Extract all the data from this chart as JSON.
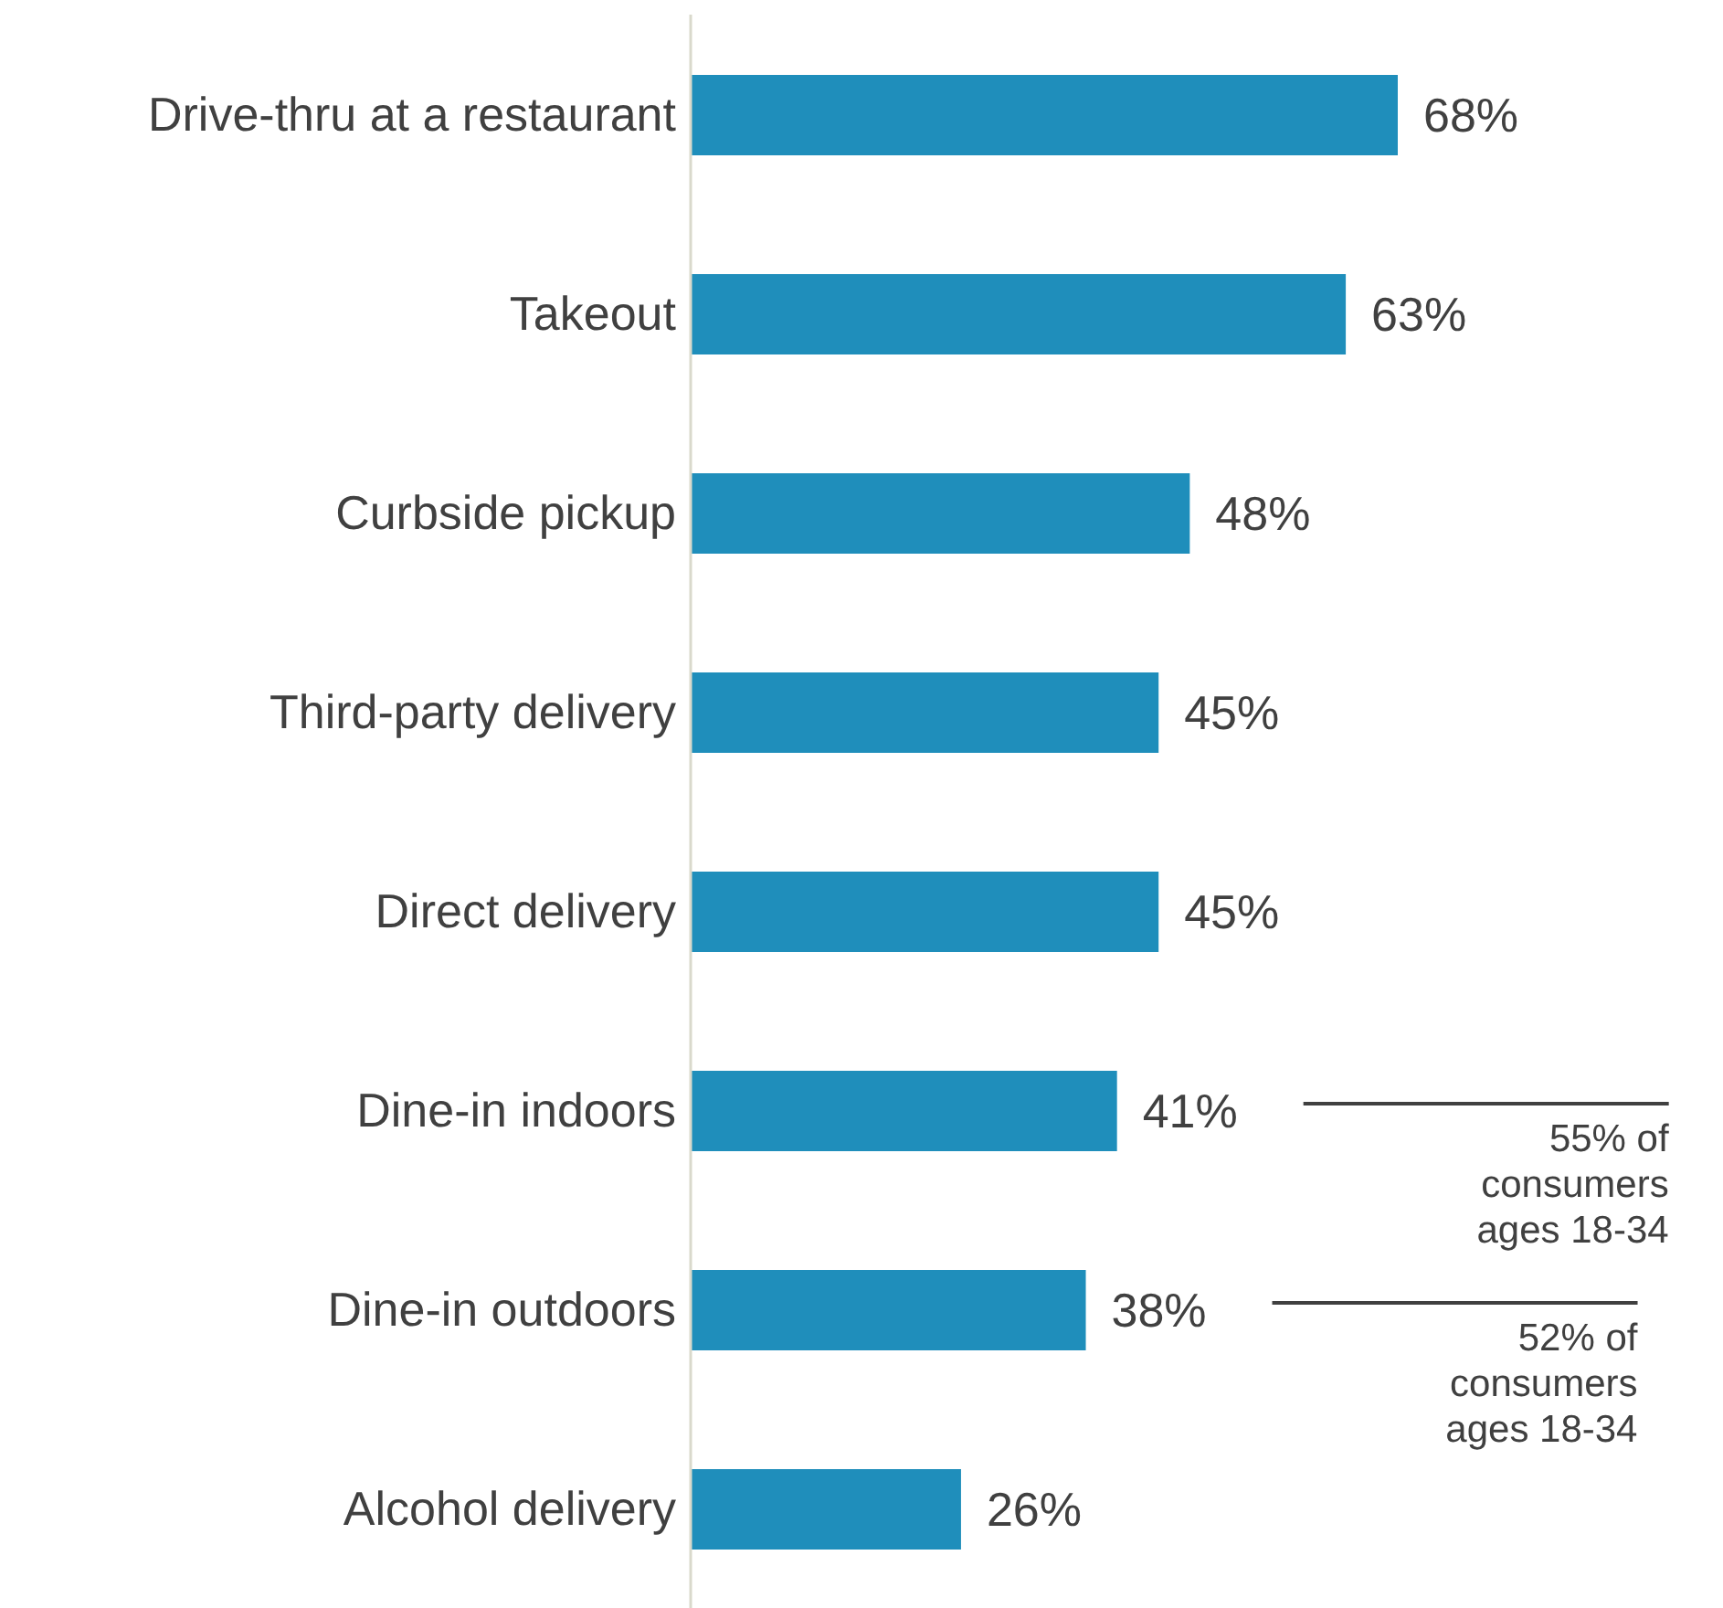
{
  "chart_data": {
    "type": "bar",
    "orientation": "horizontal",
    "categories": [
      "Drive-thru at a restaurant",
      "Takeout ",
      "Curbside pickup",
      "Third-party delivery",
      "Direct delivery",
      "Dine-in indoors",
      "Dine-in outdoors",
      "Alcohol delivery"
    ],
    "values": [
      68,
      63,
      48,
      45,
      45,
      41,
      38,
      26
    ],
    "value_labels": [
      "68%",
      "63%",
      "48%",
      "45%",
      "45%",
      "41%",
      "38%",
      "26%"
    ],
    "color": "#1f8ebb",
    "annotations": [
      "55% of consumers ages 18-34",
      "52% of consumers ages 18-34"
    ]
  }
}
